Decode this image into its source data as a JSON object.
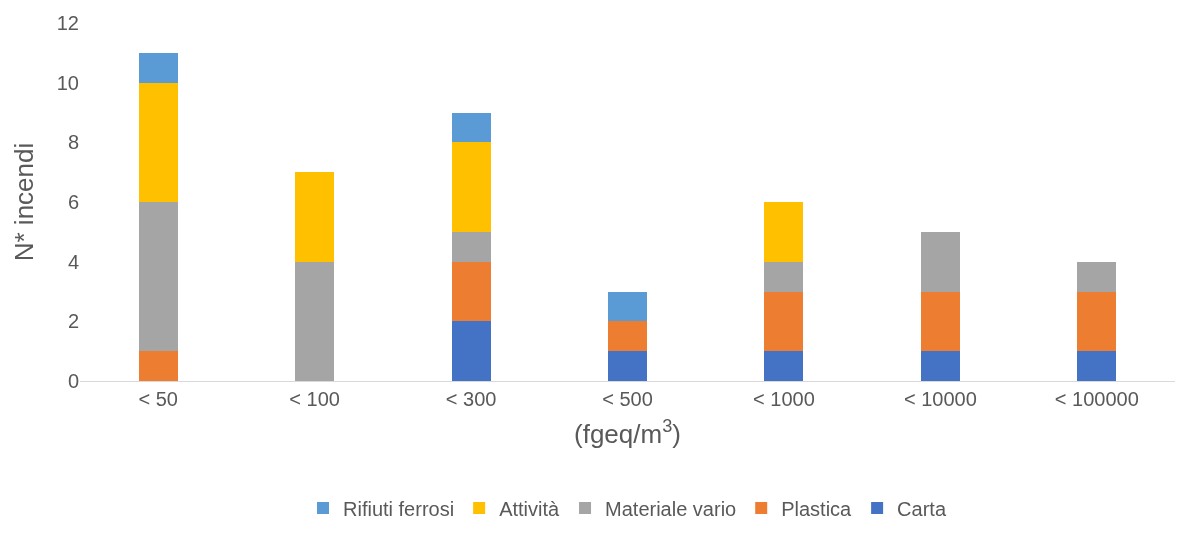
{
  "chart_data": {
    "type": "bar",
    "stacked": true,
    "xlabel": "(fgeq/m$^{3}$)",
    "ylabel": "N* incendi",
    "categories": [
      "< 50",
      "< 100",
      "< 300",
      "< 500",
      "< 1000",
      "< 10000",
      "< 100000"
    ],
    "series": [
      {
        "name": "Carta",
        "color": "#4472c4",
        "values": [
          0,
          0,
          2,
          1,
          1,
          1,
          1
        ]
      },
      {
        "name": "Plastica",
        "color": "#ed7d31",
        "values": [
          1,
          0,
          2,
          1,
          2,
          2,
          2
        ]
      },
      {
        "name": "Materiale vario",
        "color": "#a5a5a5",
        "values": [
          5,
          4,
          1,
          0,
          1,
          2,
          1
        ]
      },
      {
        "name": "Attività",
        "color": "#ffc000",
        "values": [
          4,
          3,
          3,
          0,
          2,
          0,
          0
        ]
      },
      {
        "name": "Rifiuti ferrosi",
        "color": "#5b9bd5",
        "values": [
          1,
          0,
          1,
          1,
          0,
          0,
          0
        ]
      }
    ],
    "ylim": [
      0,
      12
    ],
    "yticks": [
      0,
      2,
      4,
      6,
      8,
      10,
      12
    ],
    "grid": false,
    "legend": "bottom"
  }
}
